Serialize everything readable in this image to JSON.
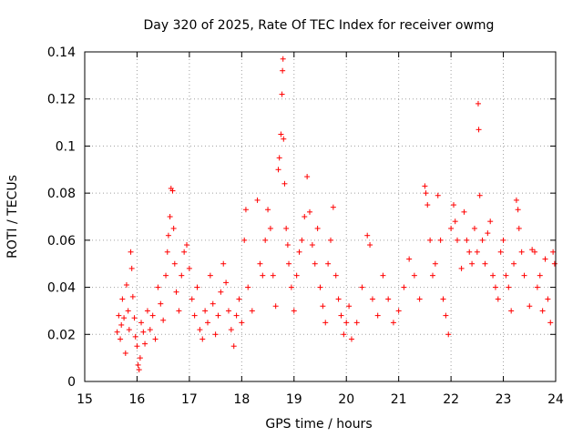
{
  "chart_data": {
    "type": "scatter",
    "title": "Day 320 of 2025, Rate Of TEC Index for receiver owmg",
    "xlabel": "GPS time / hours",
    "ylabel": "ROTI / TECUs",
    "xlim": [
      15,
      24
    ],
    "ylim": [
      0,
      0.14
    ],
    "x_ticks": [
      "15",
      "16",
      "17",
      "18",
      "19",
      "20",
      "21",
      "22",
      "23",
      "24"
    ],
    "y_ticks": [
      "0",
      "0.02",
      "0.04",
      "0.06",
      "0.08",
      "0.1",
      "0.12",
      "0.14"
    ],
    "grid": true,
    "marker": "+",
    "color": "#ff0000",
    "series": [
      {
        "name": "ROTI",
        "points": [
          [
            15.62,
            0.021
          ],
          [
            15.65,
            0.028
          ],
          [
            15.68,
            0.018
          ],
          [
            15.7,
            0.024
          ],
          [
            15.72,
            0.035
          ],
          [
            15.75,
            0.027
          ],
          [
            15.78,
            0.012
          ],
          [
            15.8,
            0.041
          ],
          [
            15.83,
            0.03
          ],
          [
            15.85,
            0.022
          ],
          [
            15.88,
            0.055
          ],
          [
            15.9,
            0.048
          ],
          [
            15.92,
            0.036
          ],
          [
            15.95,
            0.027
          ],
          [
            15.97,
            0.019
          ],
          [
            16.0,
            0.015
          ],
          [
            16.02,
            0.007
          ],
          [
            16.04,
            0.005
          ],
          [
            16.06,
            0.01
          ],
          [
            16.08,
            0.025
          ],
          [
            16.12,
            0.021
          ],
          [
            16.15,
            0.016
          ],
          [
            16.2,
            0.03
          ],
          [
            16.25,
            0.022
          ],
          [
            16.3,
            0.028
          ],
          [
            16.35,
            0.018
          ],
          [
            16.4,
            0.04
          ],
          [
            16.45,
            0.033
          ],
          [
            16.5,
            0.026
          ],
          [
            16.55,
            0.045
          ],
          [
            16.58,
            0.055
          ],
          [
            16.6,
            0.062
          ],
          [
            16.63,
            0.07
          ],
          [
            16.65,
            0.082
          ],
          [
            16.68,
            0.081
          ],
          [
            16.7,
            0.065
          ],
          [
            16.72,
            0.05
          ],
          [
            16.75,
            0.038
          ],
          [
            16.8,
            0.03
          ],
          [
            16.85,
            0.045
          ],
          [
            16.9,
            0.055
          ],
          [
            16.95,
            0.058
          ],
          [
            17.0,
            0.048
          ],
          [
            17.05,
            0.035
          ],
          [
            17.1,
            0.028
          ],
          [
            17.15,
            0.04
          ],
          [
            17.2,
            0.022
          ],
          [
            17.25,
            0.018
          ],
          [
            17.3,
            0.03
          ],
          [
            17.35,
            0.025
          ],
          [
            17.4,
            0.045
          ],
          [
            17.45,
            0.033
          ],
          [
            17.5,
            0.02
          ],
          [
            17.55,
            0.028
          ],
          [
            17.6,
            0.038
          ],
          [
            17.65,
            0.05
          ],
          [
            17.7,
            0.042
          ],
          [
            17.75,
            0.03
          ],
          [
            17.8,
            0.022
          ],
          [
            17.85,
            0.015
          ],
          [
            17.9,
            0.028
          ],
          [
            17.95,
            0.035
          ],
          [
            18.0,
            0.025
          ],
          [
            18.05,
            0.06
          ],
          [
            18.08,
            0.073
          ],
          [
            18.12,
            0.04
          ],
          [
            18.2,
            0.03
          ],
          [
            18.3,
            0.077
          ],
          [
            18.35,
            0.05
          ],
          [
            18.4,
            0.045
          ],
          [
            18.45,
            0.06
          ],
          [
            18.5,
            0.073
          ],
          [
            18.55,
            0.065
          ],
          [
            18.6,
            0.045
          ],
          [
            18.65,
            0.032
          ],
          [
            18.7,
            0.09
          ],
          [
            18.72,
            0.095
          ],
          [
            18.75,
            0.105
          ],
          [
            18.77,
            0.122
          ],
          [
            18.78,
            0.132
          ],
          [
            18.79,
            0.137
          ],
          [
            18.8,
            0.103
          ],
          [
            18.82,
            0.084
          ],
          [
            18.85,
            0.065
          ],
          [
            18.88,
            0.058
          ],
          [
            18.9,
            0.05
          ],
          [
            18.95,
            0.04
          ],
          [
            19.0,
            0.03
          ],
          [
            19.05,
            0.045
          ],
          [
            19.1,
            0.055
          ],
          [
            19.15,
            0.06
          ],
          [
            19.2,
            0.07
          ],
          [
            19.25,
            0.087
          ],
          [
            19.3,
            0.072
          ],
          [
            19.35,
            0.058
          ],
          [
            19.4,
            0.05
          ],
          [
            19.45,
            0.065
          ],
          [
            19.5,
            0.04
          ],
          [
            19.55,
            0.032
          ],
          [
            19.6,
            0.025
          ],
          [
            19.65,
            0.05
          ],
          [
            19.7,
            0.06
          ],
          [
            19.75,
            0.074
          ],
          [
            19.8,
            0.045
          ],
          [
            19.85,
            0.035
          ],
          [
            19.9,
            0.028
          ],
          [
            19.95,
            0.02
          ],
          [
            20.0,
            0.025
          ],
          [
            20.05,
            0.032
          ],
          [
            20.1,
            0.018
          ],
          [
            20.2,
            0.025
          ],
          [
            20.3,
            0.04
          ],
          [
            20.4,
            0.062
          ],
          [
            20.45,
            0.058
          ],
          [
            20.5,
            0.035
          ],
          [
            20.6,
            0.028
          ],
          [
            20.7,
            0.045
          ],
          [
            20.8,
            0.035
          ],
          [
            20.9,
            0.025
          ],
          [
            21.0,
            0.03
          ],
          [
            21.1,
            0.04
          ],
          [
            21.2,
            0.052
          ],
          [
            21.3,
            0.045
          ],
          [
            21.4,
            0.035
          ],
          [
            21.5,
            0.083
          ],
          [
            21.52,
            0.08
          ],
          [
            21.55,
            0.075
          ],
          [
            21.6,
            0.06
          ],
          [
            21.65,
            0.045
          ],
          [
            21.7,
            0.05
          ],
          [
            21.75,
            0.079
          ],
          [
            21.8,
            0.06
          ],
          [
            21.85,
            0.035
          ],
          [
            21.9,
            0.028
          ],
          [
            21.95,
            0.02
          ],
          [
            22.0,
            0.065
          ],
          [
            22.05,
            0.075
          ],
          [
            22.08,
            0.068
          ],
          [
            22.12,
            0.06
          ],
          [
            22.2,
            0.048
          ],
          [
            22.25,
            0.072
          ],
          [
            22.3,
            0.06
          ],
          [
            22.35,
            0.055
          ],
          [
            22.4,
            0.05
          ],
          [
            22.45,
            0.065
          ],
          [
            22.5,
            0.055
          ],
          [
            22.52,
            0.118
          ],
          [
            22.53,
            0.107
          ],
          [
            22.55,
            0.079
          ],
          [
            22.6,
            0.06
          ],
          [
            22.65,
            0.05
          ],
          [
            22.7,
            0.063
          ],
          [
            22.75,
            0.068
          ],
          [
            22.8,
            0.045
          ],
          [
            22.85,
            0.04
          ],
          [
            22.9,
            0.035
          ],
          [
            22.95,
            0.055
          ],
          [
            23.0,
            0.06
          ],
          [
            23.05,
            0.045
          ],
          [
            23.1,
            0.04
          ],
          [
            23.15,
            0.03
          ],
          [
            23.2,
            0.05
          ],
          [
            23.25,
            0.077
          ],
          [
            23.28,
            0.073
          ],
          [
            23.3,
            0.065
          ],
          [
            23.35,
            0.055
          ],
          [
            23.4,
            0.045
          ],
          [
            23.5,
            0.032
          ],
          [
            23.55,
            0.056
          ],
          [
            23.6,
            0.055
          ],
          [
            23.65,
            0.04
          ],
          [
            23.7,
            0.045
          ],
          [
            23.75,
            0.03
          ],
          [
            23.8,
            0.052
          ],
          [
            23.85,
            0.035
          ],
          [
            23.9,
            0.025
          ],
          [
            23.95,
            0.055
          ],
          [
            23.98,
            0.05
          ]
        ]
      }
    ]
  }
}
